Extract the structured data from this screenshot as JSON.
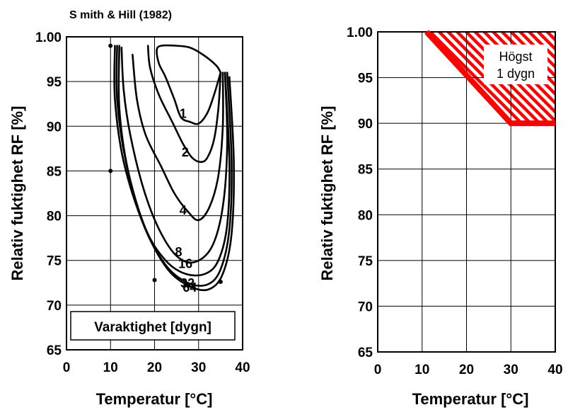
{
  "chart_data": [
    {
      "type": "line",
      "title": "S mith & Hill (1982)",
      "xlabel": "Temperatur [°C]",
      "ylabel": "Relativ fuktighet RF [%]",
      "xlim": [
        0,
        40
      ],
      "ylim": [
        65,
        100
      ],
      "x_ticks": [
        "0",
        "10",
        "20",
        "30",
        "40"
      ],
      "y_ticks": [
        "65",
        "70",
        "75",
        "80",
        "85",
        "90",
        "95",
        "1.00"
      ],
      "grid": true,
      "legend_box": "Varaktighet [dygn]",
      "series": [
        {
          "name": "1",
          "x": [
            35.0,
            33.5,
            32.0,
            30.0,
            28.0,
            26.0,
            24.5,
            22.5,
            21.0,
            20.5,
            21.5,
            25.0,
            28.0,
            31.0,
            34.0,
            35.0
          ],
          "y": [
            96.0,
            93.5,
            91.5,
            90.3,
            90.5,
            91.0,
            93.0,
            95.5,
            97.0,
            98.5,
            99.0,
            99.0,
            98.8,
            98.0,
            96.8,
            96.0
          ]
        },
        {
          "name": "2",
          "x": [
            35.0,
            34.5,
            33.5,
            32.0,
            30.5,
            28.5,
            26.5,
            24.0,
            21.0,
            19.0,
            18.5
          ],
          "y": [
            96.0,
            92.0,
            88.5,
            86.5,
            86.0,
            86.5,
            88.0,
            90.5,
            93.5,
            96.5,
            99.0
          ]
        },
        {
          "name": "4",
          "x": [
            35.5,
            35.5,
            34.5,
            32.5,
            30.0,
            27.5,
            24.5,
            21.5,
            18.0,
            16.0,
            15.0
          ],
          "y": [
            96.0,
            90.0,
            84.5,
            81.0,
            79.5,
            80.5,
            82.5,
            85.5,
            89.0,
            93.0,
            98.0
          ]
        },
        {
          "name": "8",
          "x": [
            36.0,
            36.5,
            35.5,
            33.0,
            29.0,
            25.0,
            21.0,
            17.5,
            14.5,
            13.0,
            12.5
          ],
          "y": [
            96.0,
            88.0,
            81.0,
            76.5,
            74.8,
            75.5,
            78.5,
            83.0,
            89.0,
            94.0,
            98.8
          ]
        },
        {
          "name": "16",
          "x": [
            36.0,
            37.0,
            36.5,
            34.5,
            31.5,
            27.0,
            22.5,
            18.0,
            14.0,
            12.0,
            12.0
          ],
          "y": [
            96.0,
            86.0,
            79.0,
            75.0,
            73.5,
            73.5,
            75.0,
            78.5,
            85.0,
            92.0,
            99.0
          ]
        },
        {
          "name": "32",
          "x": [
            36.5,
            37.5,
            37.0,
            35.0,
            32.0,
            27.5,
            22.5,
            17.5,
            13.5,
            11.5,
            11.5
          ],
          "y": [
            96.0,
            86.0,
            78.5,
            74.0,
            72.3,
            72.5,
            74.5,
            79.0,
            86.0,
            93.0,
            99.0
          ]
        },
        {
          "name": "64",
          "x": [
            37.0,
            38.0,
            37.5,
            35.5,
            32.5,
            28.5,
            23.0,
            17.5,
            13.0,
            11.0,
            11.0
          ],
          "y": [
            95.5,
            86.0,
            78.0,
            73.5,
            71.8,
            72.0,
            74.0,
            79.0,
            86.0,
            93.0,
            99.0
          ]
        }
      ],
      "markers": [
        {
          "x": 10.0,
          "y": 99.0
        },
        {
          "x": 10.0,
          "y": 85.0
        },
        {
          "x": 20.0,
          "y": 72.8
        },
        {
          "x": 35.0,
          "y": 72.6
        }
      ]
    },
    {
      "type": "area",
      "xlabel": "Temperatur [°C]",
      "ylabel": "Relativ fuktighet RF [%]",
      "xlim": [
        0,
        40
      ],
      "ylim": [
        65,
        100
      ],
      "x_ticks": [
        "0",
        "10",
        "20",
        "30",
        "40"
      ],
      "y_ticks": [
        "65",
        "70",
        "75",
        "80",
        "85",
        "90",
        "95",
        "1.00"
      ],
      "grid": true,
      "limit_line": {
        "x": [
          11,
          30,
          40
        ],
        "y": [
          100,
          90,
          90
        ]
      },
      "hatched_region": {
        "x": [
          11,
          40,
          40,
          30
        ],
        "y": [
          100,
          100,
          90,
          90
        ]
      },
      "annotation": [
        "Högst",
        "1 dygn"
      ],
      "colors": {
        "limit": "#ff0000",
        "hatch": "#ff0000",
        "grid": "#000000"
      }
    }
  ]
}
